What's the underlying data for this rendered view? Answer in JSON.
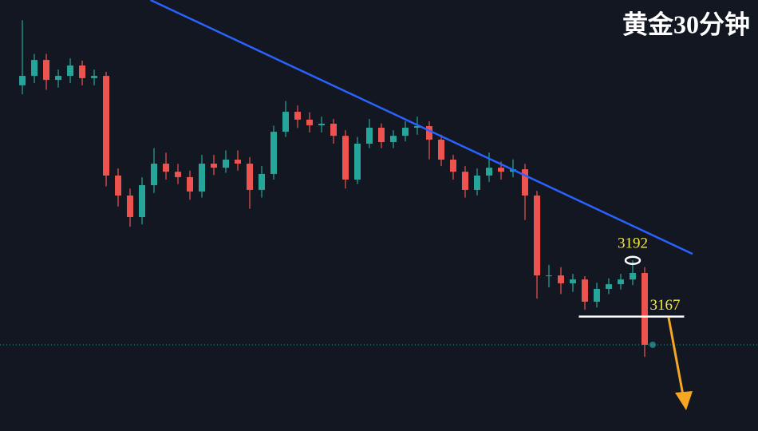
{
  "chart_data": {
    "type": "candlestick",
    "title": "黄金30分钟",
    "xlim": [
      -1.87,
      61.47
    ],
    "ylim": [
      3116,
      3308
    ],
    "up_color": "#26a69a",
    "down_color": "#ef5350",
    "candles": [
      [
        3270,
        3299,
        3266,
        3274.2
      ],
      [
        3274.2,
        3284,
        3271,
        3281.3
      ],
      [
        3281.3,
        3284,
        3268,
        3272.4
      ],
      [
        3272.4,
        3277,
        3269,
        3274.2
      ],
      [
        3274.2,
        3282,
        3271,
        3278.8
      ],
      [
        3278.8,
        3281,
        3270,
        3273.2
      ],
      [
        3273.2,
        3277,
        3270,
        3274.2
      ],
      [
        3274.2,
        3276,
        3225,
        3229.8
      ],
      [
        3229.8,
        3233,
        3216,
        3220.9
      ],
      [
        3220.9,
        3224,
        3207,
        3211.3
      ],
      [
        3211.3,
        3229,
        3208,
        3225.5
      ],
      [
        3225.5,
        3242,
        3222,
        3235.1
      ],
      [
        3235.1,
        3240,
        3228,
        3231.5
      ],
      [
        3231.5,
        3235,
        3226,
        3229.1
      ],
      [
        3229.1,
        3232,
        3219,
        3222.7
      ],
      [
        3222.7,
        3239,
        3220,
        3235.1
      ],
      [
        3235.1,
        3239,
        3230,
        3233.3
      ],
      [
        3233.3,
        3241,
        3231,
        3236.9
      ],
      [
        3236.9,
        3241,
        3232,
        3235.1
      ],
      [
        3235.1,
        3238,
        3215,
        3223.4
      ],
      [
        3223.4,
        3234,
        3220,
        3230.5
      ],
      [
        3230.5,
        3252,
        3228,
        3249.3
      ],
      [
        3249.3,
        3263,
        3247,
        3258.2
      ],
      [
        3258.2,
        3261,
        3251,
        3254.7
      ],
      [
        3254.7,
        3258,
        3249,
        3252.2
      ],
      [
        3252.2,
        3256,
        3249,
        3252.9
      ],
      [
        3252.9,
        3255,
        3244,
        3247.5
      ],
      [
        3247.5,
        3250,
        3224,
        3228.0
      ],
      [
        3228.0,
        3247,
        3226,
        3244.0
      ],
      [
        3244.0,
        3255,
        3242,
        3251.1
      ],
      [
        3251.1,
        3253,
        3242,
        3244.7
      ],
      [
        3244.7,
        3250,
        3242,
        3247.5
      ],
      [
        3247.5,
        3254,
        3245,
        3251.1
      ],
      [
        3251.1,
        3256,
        3248,
        3251.8
      ],
      [
        3251.8,
        3254,
        3237,
        3245.8
      ],
      [
        3245.8,
        3248,
        3234,
        3236.9
      ],
      [
        3236.9,
        3239,
        3228,
        3231.5
      ],
      [
        3231.5,
        3234,
        3220,
        3223.4
      ],
      [
        3223.4,
        3233,
        3221,
        3229.8
      ],
      [
        3229.8,
        3240,
        3227,
        3233.3
      ],
      [
        3233.3,
        3236,
        3228,
        3231.5
      ],
      [
        3231.5,
        3237,
        3229,
        3232.6
      ],
      [
        3232.6,
        3235,
        3210,
        3220.9
      ],
      [
        3220.9,
        3223,
        3175,
        3185.3
      ],
      [
        3185.3,
        3190,
        3180,
        3185.3
      ],
      [
        3185.3,
        3189,
        3177,
        3181.8
      ],
      [
        3181.8,
        3186,
        3178,
        3183.5
      ],
      [
        3183.5,
        3185,
        3170,
        3173.6
      ],
      [
        3173.6,
        3182,
        3171,
        3179.3
      ],
      [
        3179.3,
        3184,
        3177,
        3181.4
      ],
      [
        3181.4,
        3186,
        3179,
        3183.5
      ],
      [
        3183.5,
        3192,
        3181,
        3186.4
      ],
      [
        3186.4,
        3189,
        3149,
        3154.4
      ]
    ],
    "trendline": {
      "x": [
        10.7,
        56
      ],
      "y": [
        3308,
        3194.9
      ],
      "color": "#2962ff"
    },
    "resistance": {
      "value": 3192,
      "x": 51
    },
    "support": {
      "value": 3167,
      "x": [
        46.5,
        55.3
      ]
    }
  }
}
